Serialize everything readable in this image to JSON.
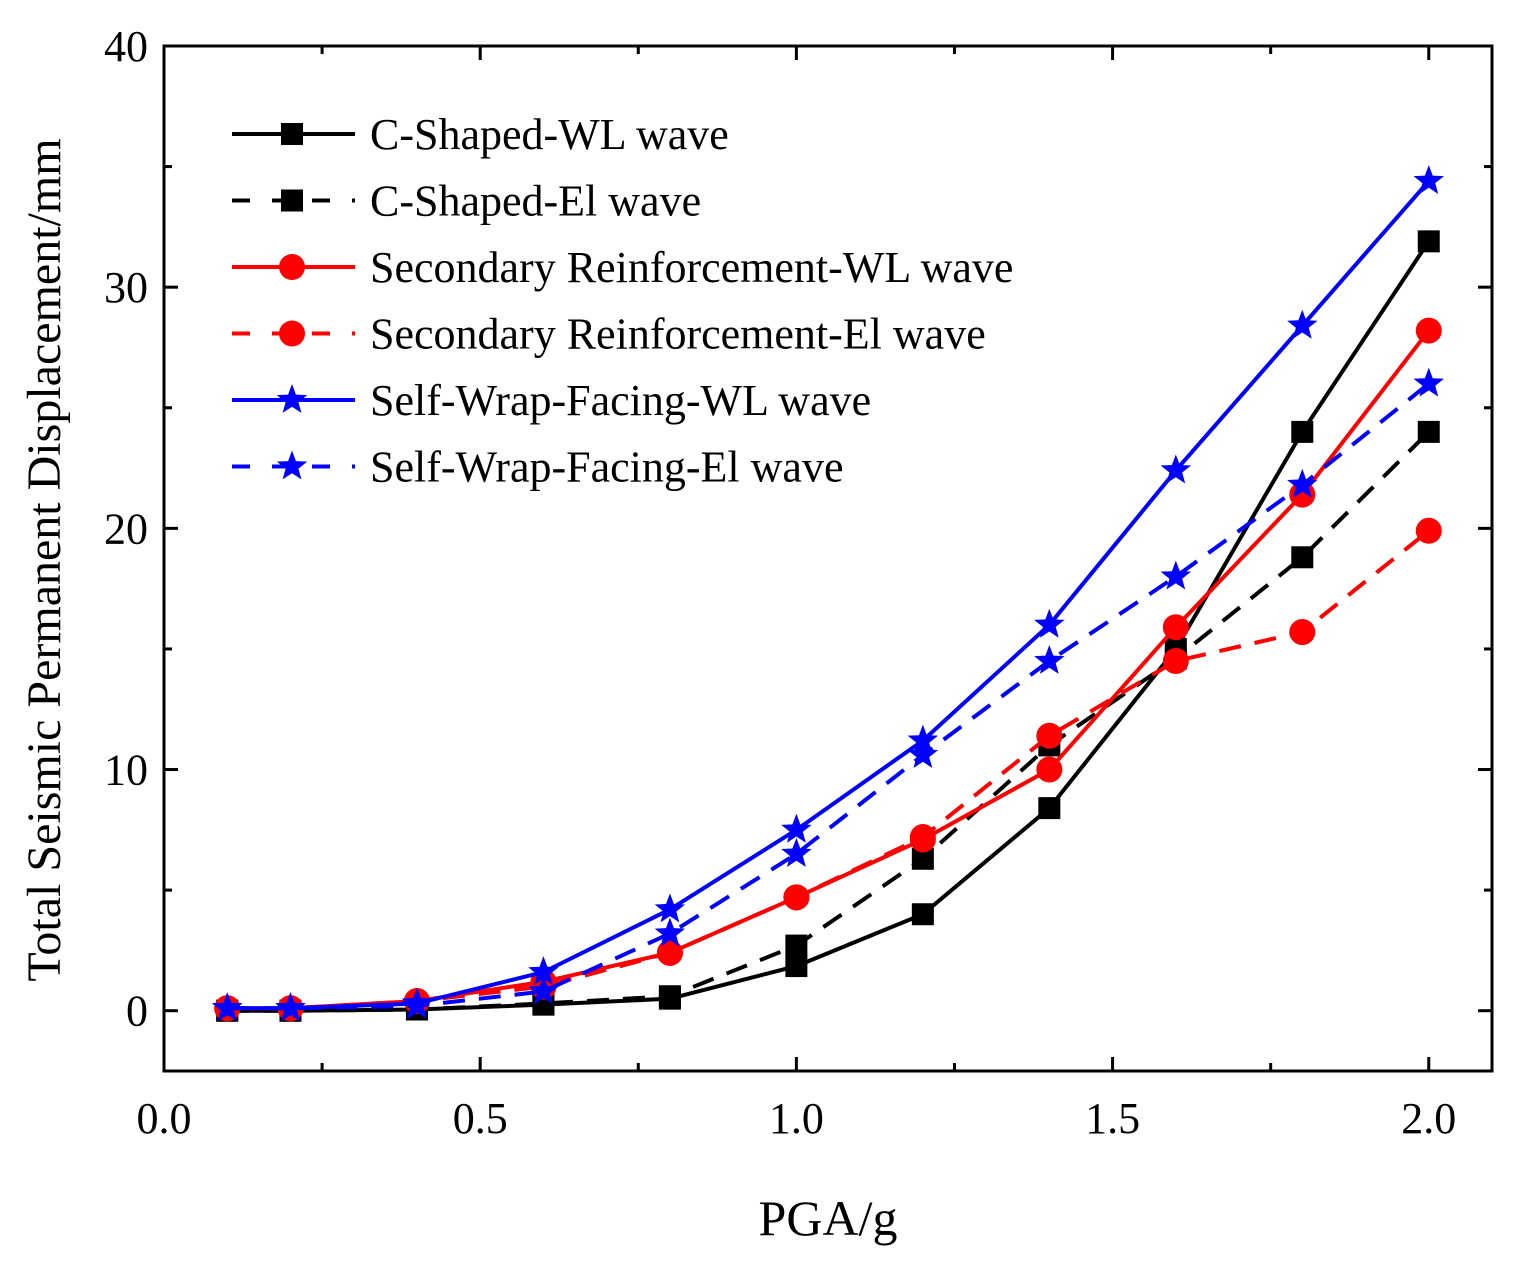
{
  "chart_data": {
    "type": "line",
    "title": "",
    "xlabel": "PGA/g",
    "ylabel": "Total Seismic Permanent Displacement/mm",
    "xlim": [
      0,
      2.1
    ],
    "ylim": [
      -2.5,
      40
    ],
    "xticks": [
      0.0,
      0.5,
      1.0,
      1.5,
      2.0
    ],
    "xtick_labels": [
      "0.0",
      "0.5",
      "1.0",
      "1.5",
      "2.0"
    ],
    "yticks": [
      0,
      10,
      20,
      30,
      40
    ],
    "ytick_labels": [
      "0",
      "10",
      "20",
      "30",
      "40"
    ],
    "grid": false,
    "legend_position": "top-left",
    "x": [
      0.1,
      0.2,
      0.4,
      0.6,
      0.8,
      1.0,
      1.2,
      1.4,
      1.6,
      1.8,
      2.0
    ],
    "series": [
      {
        "name": "C-Shaped-WL wave",
        "color": "#000000",
        "dash": false,
        "marker": "square",
        "values": [
          0,
          0,
          0.05,
          0.25,
          0.5,
          1.85,
          4.0,
          8.4,
          15.0,
          24.0,
          31.9
        ]
      },
      {
        "name": "C-Shaped-El wave",
        "color": "#000000",
        "dash": true,
        "marker": "square",
        "values": [
          0,
          0,
          0.05,
          0.3,
          0.6,
          2.7,
          6.3,
          11.0,
          14.6,
          18.8,
          24.0
        ]
      },
      {
        "name": "Secondary Reinforcement-WL wave",
        "color": "#ff0000",
        "dash": false,
        "marker": "circle",
        "values": [
          0.1,
          0.1,
          0.4,
          1.2,
          2.4,
          4.7,
          7.1,
          10.0,
          15.9,
          21.4,
          28.2
        ]
      },
      {
        "name": "Secondary Reinforcement-El wave",
        "color": "#ff0000",
        "dash": true,
        "marker": "circle",
        "values": [
          0.1,
          0.1,
          0.4,
          1.0,
          2.4,
          4.7,
          7.2,
          11.4,
          14.5,
          15.7,
          19.9
        ]
      },
      {
        "name": "Self-Wrap-Facing-WL wave",
        "color": "#0000ff",
        "dash": false,
        "marker": "star",
        "values": [
          0.1,
          0.1,
          0.3,
          1.6,
          4.2,
          7.5,
          11.2,
          16.0,
          22.4,
          28.4,
          34.4
        ]
      },
      {
        "name": "Self-Wrap-Facing-El wave",
        "color": "#0000ff",
        "dash": true,
        "marker": "star",
        "values": [
          0.1,
          0.1,
          0.2,
          0.8,
          3.2,
          6.5,
          10.6,
          14.5,
          18.0,
          21.8,
          26.0
        ]
      }
    ]
  }
}
